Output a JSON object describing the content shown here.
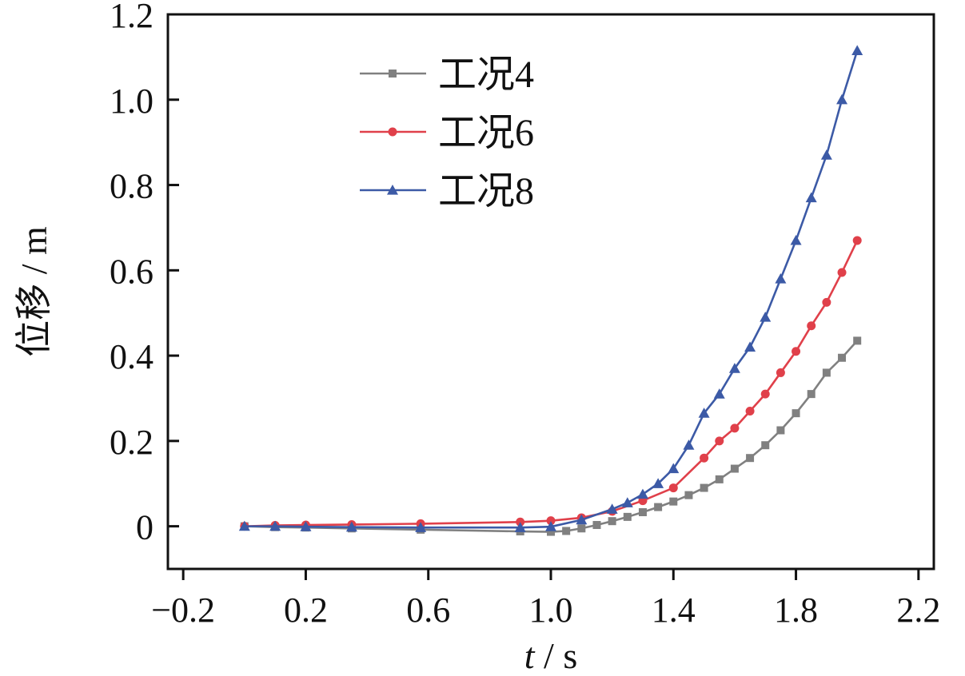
{
  "chart_data": {
    "type": "line",
    "xlabel_var": "t",
    "xlabel_unit": "s",
    "xlabel_sep": " / ",
    "ylabel": "位移 / m",
    "xlim": [
      -0.25,
      2.25
    ],
    "ylim": [
      -0.1,
      1.2
    ],
    "xticks": [
      -0.2,
      0.2,
      0.6,
      1.0,
      1.4,
      1.8,
      2.2
    ],
    "xtick_labels": [
      "−0.2",
      "0.2",
      "0.6",
      "1.0",
      "1.4",
      "1.8",
      "2.2"
    ],
    "yticks": [
      0,
      0.2,
      0.4,
      0.6,
      0.8,
      1.0,
      1.2
    ],
    "ytick_labels": [
      "0",
      "0.2",
      "0.4",
      "0.6",
      "0.8",
      "1.0",
      "1.2"
    ],
    "legend_position": "top-center",
    "series": [
      {
        "name": "工况4",
        "color": "#808080",
        "marker": "square",
        "x": [
          0.0,
          0.1,
          0.2,
          0.35,
          0.575,
          0.9,
          1.0,
          1.05,
          1.1,
          1.15,
          1.2,
          1.25,
          1.3,
          1.35,
          1.4,
          1.45,
          1.5,
          1.55,
          1.6,
          1.65,
          1.7,
          1.75,
          1.8,
          1.85,
          1.9,
          1.95,
          2.0
        ],
        "y": [
          0.0,
          -0.002,
          -0.003,
          -0.005,
          -0.008,
          -0.012,
          -0.013,
          -0.011,
          -0.005,
          0.003,
          0.012,
          0.022,
          0.033,
          0.045,
          0.058,
          0.073,
          0.09,
          0.11,
          0.135,
          0.16,
          0.19,
          0.225,
          0.265,
          0.31,
          0.36,
          0.395,
          0.435
        ]
      },
      {
        "name": "工况6",
        "color": "#e0404a",
        "marker": "circle",
        "x": [
          0.0,
          0.1,
          0.2,
          0.35,
          0.575,
          0.9,
          1.0,
          1.1,
          1.2,
          1.3,
          1.4,
          1.5,
          1.55,
          1.6,
          1.65,
          1.7,
          1.75,
          1.8,
          1.85,
          1.9,
          1.95,
          2.0
        ],
        "y": [
          0.0,
          0.002,
          0.003,
          0.004,
          0.006,
          0.01,
          0.013,
          0.02,
          0.035,
          0.06,
          0.09,
          0.16,
          0.2,
          0.23,
          0.27,
          0.31,
          0.36,
          0.41,
          0.47,
          0.525,
          0.595,
          0.67
        ]
      },
      {
        "name": "工况8",
        "color": "#3c5aa6",
        "marker": "triangle",
        "x": [
          0.0,
          0.1,
          0.2,
          0.35,
          0.575,
          0.9,
          1.0,
          1.1,
          1.2,
          1.25,
          1.3,
          1.35,
          1.4,
          1.45,
          1.5,
          1.55,
          1.6,
          1.65,
          1.7,
          1.75,
          1.8,
          1.85,
          1.9,
          1.95,
          2.0
        ],
        "y": [
          0.0,
          0.0,
          -0.001,
          -0.002,
          -0.003,
          -0.003,
          -0.001,
          0.015,
          0.04,
          0.055,
          0.075,
          0.1,
          0.135,
          0.19,
          0.265,
          0.31,
          0.37,
          0.42,
          0.49,
          0.58,
          0.67,
          0.77,
          0.87,
          1.0,
          1.115
        ]
      }
    ]
  }
}
